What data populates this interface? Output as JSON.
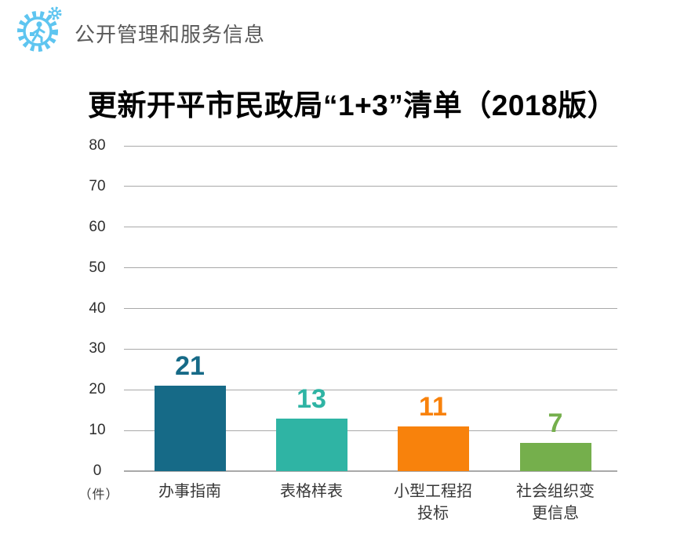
{
  "header": {
    "title": "公开管理和服务信息",
    "title_color": "#595959",
    "icon": "gear-person-icon",
    "icon_color": "#5ec5f0"
  },
  "chart_data": {
    "type": "bar",
    "title": "更新开平市民政局“1+3”清单（2018版）",
    "unit_label": "（件）",
    "categories": [
      "办事指南",
      "表格样表",
      "小型工程招投标",
      "社会组织变更信息"
    ],
    "category_lines": [
      [
        "办事指南"
      ],
      [
        "表格样表"
      ],
      [
        "小型工程招",
        "投标"
      ],
      [
        "社会组织变",
        "更信息"
      ]
    ],
    "values": [
      21,
      13,
      11,
      7
    ],
    "bar_colors": [
      "#166a87",
      "#2fb4a4",
      "#f8820c",
      "#75af4c"
    ],
    "yticks": [
      0,
      10,
      20,
      30,
      40,
      50,
      60,
      70,
      80
    ],
    "ylim": [
      0,
      80
    ],
    "xlabel": "",
    "ylabel": "（件）",
    "grid": true,
    "gridline_color": "#a9a9a9",
    "legend": "none"
  }
}
